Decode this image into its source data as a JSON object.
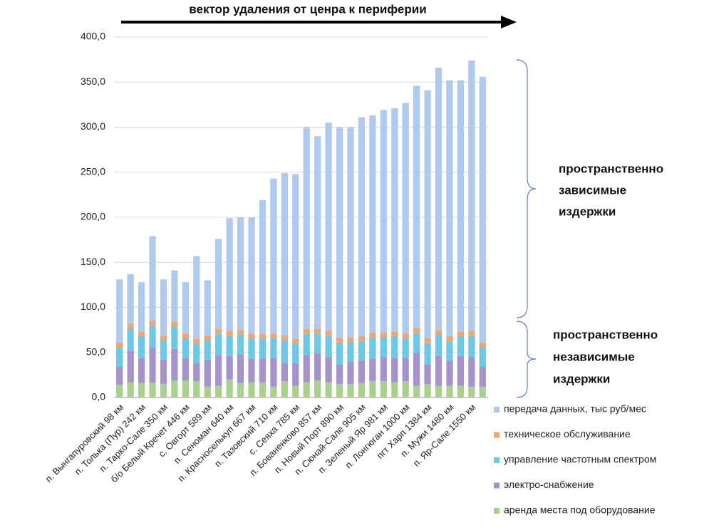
{
  "chart_data": {
    "type": "stacked_bar",
    "title": "вектор удаления от ценра к периферии",
    "categories": [
      "п. Вынгапуровский  98 км",
      null,
      "п. Толька (Пур)  242 км",
      null,
      "п. Тарко-Сале  350 км",
      null,
      "б/о Белый Кречет  446 км",
      null,
      "с. Овгорт  589 км",
      null,
      "п. Сеноман  640 км",
      null,
      "п. Красноселькуп  667 км",
      null,
      "п. Тазовский  710 км",
      null,
      "с. Сеяха  785 км",
      null,
      "п. Бованенково  857 км",
      null,
      "п. Новый Порт  890 км",
      null,
      "п. Сюнай-Сале  905 км",
      null,
      "п. Зеленый Яр  981 км",
      null,
      "п. Лонгюган  1000 км",
      null,
      "пгт Харп  1384 км",
      null,
      "п. Мужи  1480 км",
      null,
      "п. Яр-Сале  1550 км",
      null
    ],
    "series": [
      {
        "name": "аренда места под оборудование",
        "color": "#a9d18e",
        "values": [
          14,
          17,
          16,
          16,
          15,
          19,
          19,
          18,
          12,
          13,
          20,
          16,
          17,
          17,
          12,
          18,
          13,
          17,
          19,
          17,
          15,
          15,
          16,
          18,
          18,
          17,
          18,
          13,
          15,
          13,
          13,
          13,
          12,
          12
        ]
      },
      {
        "name": "электро-снабжение",
        "color": "#a793cc",
        "values": [
          20,
          35,
          28,
          40,
          27,
          35,
          25,
          20,
          30,
          34,
          26,
          32,
          26,
          26,
          32,
          20,
          25,
          30,
          30,
          28,
          22,
          25,
          25,
          25,
          27,
          27,
          26,
          37,
          22,
          33,
          28,
          33,
          33,
          22
        ]
      },
      {
        "name": "управление частотным спектром",
        "color": "#6cc8e6",
        "values": [
          22,
          25,
          24,
          24,
          22,
          25,
          22,
          22,
          22,
          24,
          23,
          22,
          23,
          23,
          22,
          26,
          22,
          24,
          22,
          24,
          24,
          22,
          22,
          24,
          22,
          24,
          22,
          22,
          24,
          24,
          22,
          22,
          24,
          22
        ]
      },
      {
        "name": "техническое обслуживание",
        "color": "#f5a56a",
        "values": [
          5,
          5,
          5,
          5,
          5,
          5,
          5,
          5,
          5,
          5,
          5,
          5,
          5,
          5,
          5,
          5,
          5,
          5,
          5,
          5,
          5,
          5,
          5,
          5,
          5,
          5,
          5,
          5,
          5,
          5,
          5,
          5,
          5,
          5
        ]
      },
      {
        "name": "передача данных, тыс руб/мес",
        "color": "#b0c9ef",
        "values": [
          70,
          55,
          55,
          94,
          62,
          57,
          57,
          92,
          61,
          100,
          125,
          125,
          129,
          148,
          172,
          180,
          183,
          224,
          214,
          231,
          234,
          233,
          243,
          241,
          247,
          248,
          256,
          269,
          275,
          291,
          284,
          279,
          300,
          295
        ]
      }
    ],
    "ylim": [
      0,
      400
    ],
    "yticks": [
      {
        "value": 0,
        "label": "0,0"
      },
      {
        "value": 50,
        "label": "50,0"
      },
      {
        "value": 100,
        "label": "100,0"
      },
      {
        "value": 150,
        "label": "150,0"
      },
      {
        "value": 200,
        "label": "200,0"
      },
      {
        "value": 250,
        "label": "250,0"
      },
      {
        "value": 300,
        "label": "300,0"
      },
      {
        "value": 350,
        "label": "350,0"
      },
      {
        "value": 400,
        "label": "400,0"
      }
    ],
    "grid": true,
    "legend": "right",
    "annotations": [
      {
        "lines": [
          "пространственно",
          "зависимые",
          "издержки"
        ]
      },
      {
        "lines": [
          "пространственно",
          "независимые",
          "издержки"
        ]
      }
    ]
  }
}
